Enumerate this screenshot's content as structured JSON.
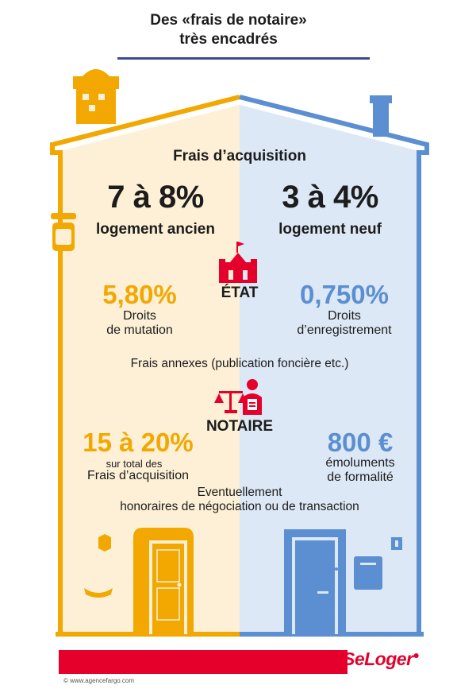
{
  "title": {
    "line1": "Des «frais de notaire»",
    "line2": "très encadrés"
  },
  "section_label": "Frais d’acquisition",
  "left": {
    "rate": "7 à 8%",
    "type": "logement ancien",
    "etat_pct": "5,80%",
    "etat_label1": "Droits",
    "etat_label2": "de mutation",
    "notaire_pct": "15 à 20%",
    "notaire_label1": "sur total des",
    "notaire_label2": "Frais d’acquisition"
  },
  "right": {
    "rate": "3 à 4%",
    "type": "logement neuf",
    "etat_pct": "0,750%",
    "etat_label1": "Droits",
    "etat_label2": "d’enregistrement",
    "notaire_pct": "800 €",
    "notaire_label1": "émoluments",
    "notaire_label2": "de formalité"
  },
  "etat_label": "ÉTAT",
  "annex_text": "Frais annexes (publication foncière etc.)",
  "notaire_label": "NOTAIRE",
  "optional": {
    "line1": "Eventuellement",
    "line2": "honoraires de négociation ou de transaction"
  },
  "brand": "SeLoger",
  "credit": "© www.agencefargo.com",
  "colors": {
    "orange": "#f2a800",
    "blue": "#5b8fd1",
    "red": "#e4002b",
    "cream": "#fdf0d6",
    "pale_blue": "#dde8f6"
  },
  "icons": [
    "chimney-icon",
    "lantern-icon",
    "state-building-icon",
    "notary-icon",
    "door-icon",
    "mailbox-icon",
    "house-number-icon"
  ]
}
